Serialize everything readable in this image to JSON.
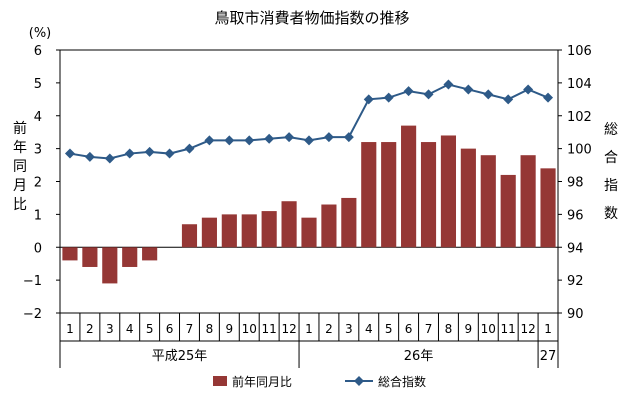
{
  "chart_data": {
    "type": "bar",
    "title": "鳥取市消費者物価指数の推移",
    "left_axis": {
      "unit": "(%)",
      "label_chars": [
        "前",
        "年",
        "同",
        "月",
        "比"
      ],
      "ylim": [
        -2,
        6
      ],
      "ticks": [
        "-2",
        "-1",
        "0",
        "1",
        "2",
        "3",
        "4",
        "5",
        "6"
      ]
    },
    "right_axis": {
      "label_chars": [
        "総",
        "合",
        "指",
        "数"
      ],
      "ylim": [
        90,
        106
      ],
      "ticks": [
        "90",
        "92",
        "94",
        "96",
        "98",
        "100",
        "102",
        "104",
        "106"
      ]
    },
    "categories": [
      "1",
      "2",
      "3",
      "4",
      "5",
      "6",
      "7",
      "8",
      "9",
      "10",
      "11",
      "12",
      "1",
      "2",
      "3",
      "4",
      "5",
      "6",
      "7",
      "8",
      "9",
      "10",
      "11",
      "12",
      "1"
    ],
    "groups": [
      {
        "label": "平成25年",
        "count": 12
      },
      {
        "label": "26年",
        "count": 12
      },
      {
        "label": "27",
        "count": 1
      }
    ],
    "grid": false,
    "legend_position": "bottom-center",
    "series": [
      {
        "name": "前年同月比",
        "type": "bar",
        "axis": "left",
        "color": "#953735",
        "values": [
          -0.4,
          -0.6,
          -1.1,
          -0.6,
          -0.4,
          0.0,
          0.7,
          0.9,
          1.0,
          1.0,
          1.1,
          1.4,
          0.9,
          1.3,
          1.5,
          3.2,
          3.2,
          3.7,
          3.2,
          3.4,
          3.0,
          2.8,
          2.2,
          2.8,
          2.4
        ]
      },
      {
        "name": "総合指数",
        "type": "line",
        "axis": "right",
        "color": "#2e5a88",
        "values": [
          99.7,
          99.5,
          99.4,
          99.7,
          99.8,
          99.7,
          100.0,
          100.5,
          100.5,
          100.5,
          100.6,
          100.7,
          100.5,
          100.7,
          100.7,
          103.0,
          103.1,
          103.5,
          103.3,
          103.9,
          103.6,
          103.3,
          103.0,
          103.6,
          103.1
        ]
      }
    ]
  }
}
